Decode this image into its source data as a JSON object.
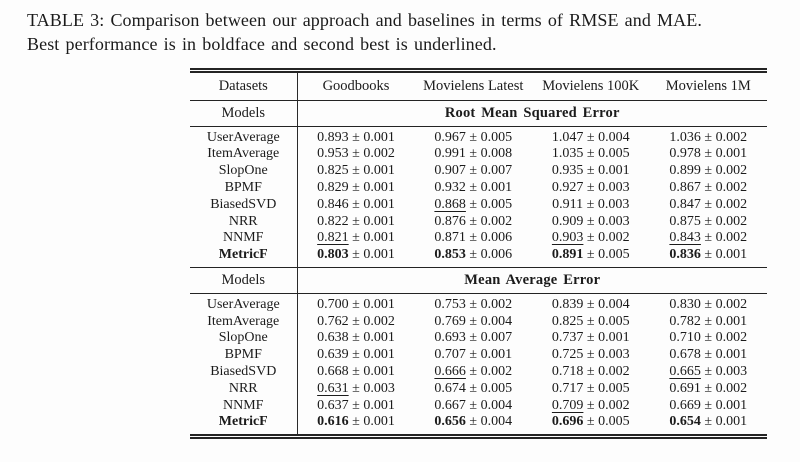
{
  "page": {
    "background_color": "#fdfdfd",
    "text_color": "#1b1b1b",
    "rule_color": "#242424"
  },
  "caption": {
    "line1": "TABLE 3: Comparison between our approach and baselines in terms of RMSE and MAE.",
    "line2": "Best performance is in boldface and second best is underlined."
  },
  "table": {
    "corner_label": "Datasets",
    "models_label": "Models",
    "plus_minus": "±",
    "dataset_columns": [
      "Goodbooks",
      "Movielens Latest",
      "Movielens 100K",
      "Movielens 1M"
    ],
    "legend": {
      "best": "boldface",
      "second_best": "underlined"
    },
    "sections": [
      {
        "metric": "Root Mean Squared Error",
        "rows": [
          {
            "model": "UserAverage",
            "model_bold": false,
            "cells": [
              {
                "mean": "0.893",
                "err": "0.001",
                "emphasis": "none"
              },
              {
                "mean": "0.967",
                "err": "0.005",
                "emphasis": "none"
              },
              {
                "mean": "1.047",
                "err": "0.004",
                "emphasis": "none"
              },
              {
                "mean": "1.036",
                "err": "0.002",
                "emphasis": "none"
              }
            ]
          },
          {
            "model": "ItemAverage",
            "model_bold": false,
            "cells": [
              {
                "mean": "0.953",
                "err": "0.002",
                "emphasis": "none"
              },
              {
                "mean": "0.991",
                "err": "0.008",
                "emphasis": "none"
              },
              {
                "mean": "1.035",
                "err": "0.005",
                "emphasis": "none"
              },
              {
                "mean": "0.978",
                "err": "0.001",
                "emphasis": "none"
              }
            ]
          },
          {
            "model": "SlopOne",
            "model_bold": false,
            "cells": [
              {
                "mean": "0.825",
                "err": "0.001",
                "emphasis": "none"
              },
              {
                "mean": "0.907",
                "err": "0.007",
                "emphasis": "none"
              },
              {
                "mean": "0.935",
                "err": "0.001",
                "emphasis": "none"
              },
              {
                "mean": "0.899",
                "err": "0.002",
                "emphasis": "none"
              }
            ]
          },
          {
            "model": "BPMF",
            "model_bold": false,
            "cells": [
              {
                "mean": "0.829",
                "err": "0.001",
                "emphasis": "none"
              },
              {
                "mean": "0.932",
                "err": "0.001",
                "emphasis": "none"
              },
              {
                "mean": "0.927",
                "err": "0.003",
                "emphasis": "none"
              },
              {
                "mean": "0.867",
                "err": "0.002",
                "emphasis": "none"
              }
            ]
          },
          {
            "model": "BiasedSVD",
            "model_bold": false,
            "cells": [
              {
                "mean": "0.846",
                "err": "0.001",
                "emphasis": "none"
              },
              {
                "mean": "0.868",
                "err": "0.005",
                "emphasis": "underline"
              },
              {
                "mean": "0.911",
                "err": "0.003",
                "emphasis": "none"
              },
              {
                "mean": "0.847",
                "err": "0.002",
                "emphasis": "none"
              }
            ]
          },
          {
            "model": "NRR",
            "model_bold": false,
            "cells": [
              {
                "mean": "0.822",
                "err": "0.001",
                "emphasis": "none"
              },
              {
                "mean": "0.876",
                "err": "0.002",
                "emphasis": "none"
              },
              {
                "mean": "0.909",
                "err": "0.003",
                "emphasis": "none"
              },
              {
                "mean": "0.875",
                "err": "0.002",
                "emphasis": "none"
              }
            ]
          },
          {
            "model": "NNMF",
            "model_bold": false,
            "cells": [
              {
                "mean": "0.821",
                "err": "0.001",
                "emphasis": "underline"
              },
              {
                "mean": "0.871",
                "err": "0.006",
                "emphasis": "none"
              },
              {
                "mean": "0.903",
                "err": "0.002",
                "emphasis": "underline"
              },
              {
                "mean": "0.843",
                "err": "0.002",
                "emphasis": "underline"
              }
            ]
          },
          {
            "model": "MetricF",
            "model_bold": true,
            "cells": [
              {
                "mean": "0.803",
                "err": "0.001",
                "emphasis": "bold"
              },
              {
                "mean": "0.853",
                "err": "0.006",
                "emphasis": "bold"
              },
              {
                "mean": "0.891",
                "err": "0.005",
                "emphasis": "bold"
              },
              {
                "mean": "0.836",
                "err": "0.001",
                "emphasis": "bold"
              }
            ]
          }
        ]
      },
      {
        "metric": "Mean Average Error",
        "rows": [
          {
            "model": "UserAverage",
            "model_bold": false,
            "cells": [
              {
                "mean": "0.700",
                "err": "0.001",
                "emphasis": "none"
              },
              {
                "mean": "0.753",
                "err": "0.002",
                "emphasis": "none"
              },
              {
                "mean": "0.839",
                "err": "0.004",
                "emphasis": "none"
              },
              {
                "mean": "0.830",
                "err": "0.002",
                "emphasis": "none"
              }
            ]
          },
          {
            "model": "ItemAverage",
            "model_bold": false,
            "cells": [
              {
                "mean": "0.762",
                "err": "0.002",
                "emphasis": "none"
              },
              {
                "mean": "0.769",
                "err": "0.004",
                "emphasis": "none"
              },
              {
                "mean": "0.825",
                "err": "0.005",
                "emphasis": "none"
              },
              {
                "mean": "0.782",
                "err": "0.001",
                "emphasis": "none"
              }
            ]
          },
          {
            "model": "SlopOne",
            "model_bold": false,
            "cells": [
              {
                "mean": "0.638",
                "err": "0.001",
                "emphasis": "none"
              },
              {
                "mean": "0.693",
                "err": "0.007",
                "emphasis": "none"
              },
              {
                "mean": "0.737",
                "err": "0.001",
                "emphasis": "none"
              },
              {
                "mean": "0.710",
                "err": "0.002",
                "emphasis": "none"
              }
            ]
          },
          {
            "model": "BPMF",
            "model_bold": false,
            "cells": [
              {
                "mean": "0.639",
                "err": "0.001",
                "emphasis": "none"
              },
              {
                "mean": "0.707",
                "err": "0.001",
                "emphasis": "none"
              },
              {
                "mean": "0.725",
                "err": "0.003",
                "emphasis": "none"
              },
              {
                "mean": "0.678",
                "err": "0.001",
                "emphasis": "none"
              }
            ]
          },
          {
            "model": "BiasedSVD",
            "model_bold": false,
            "cells": [
              {
                "mean": "0.668",
                "err": "0.001",
                "emphasis": "none"
              },
              {
                "mean": "0.666",
                "err": "0.002",
                "emphasis": "underline"
              },
              {
                "mean": "0.718",
                "err": "0.002",
                "emphasis": "none"
              },
              {
                "mean": "0.665",
                "err": "0.003",
                "emphasis": "underline"
              }
            ]
          },
          {
            "model": "NRR",
            "model_bold": false,
            "cells": [
              {
                "mean": "0.631",
                "err": "0.003",
                "emphasis": "underline"
              },
              {
                "mean": "0.674",
                "err": "0.005",
                "emphasis": "none"
              },
              {
                "mean": "0.717",
                "err": "0.005",
                "emphasis": "none"
              },
              {
                "mean": "0.691",
                "err": "0.002",
                "emphasis": "none"
              }
            ]
          },
          {
            "model": "NNMF",
            "model_bold": false,
            "cells": [
              {
                "mean": "0.637",
                "err": "0.001",
                "emphasis": "none"
              },
              {
                "mean": "0.667",
                "err": "0.004",
                "emphasis": "none"
              },
              {
                "mean": "0.709",
                "err": "0.002",
                "emphasis": "underline"
              },
              {
                "mean": "0.669",
                "err": "0.001",
                "emphasis": "none"
              }
            ]
          },
          {
            "model": "MetricF",
            "model_bold": true,
            "cells": [
              {
                "mean": "0.616",
                "err": "0.001",
                "emphasis": "bold"
              },
              {
                "mean": "0.656",
                "err": "0.004",
                "emphasis": "bold"
              },
              {
                "mean": "0.696",
                "err": "0.005",
                "emphasis": "bold"
              },
              {
                "mean": "0.654",
                "err": "0.001",
                "emphasis": "bold"
              }
            ]
          }
        ]
      }
    ]
  }
}
